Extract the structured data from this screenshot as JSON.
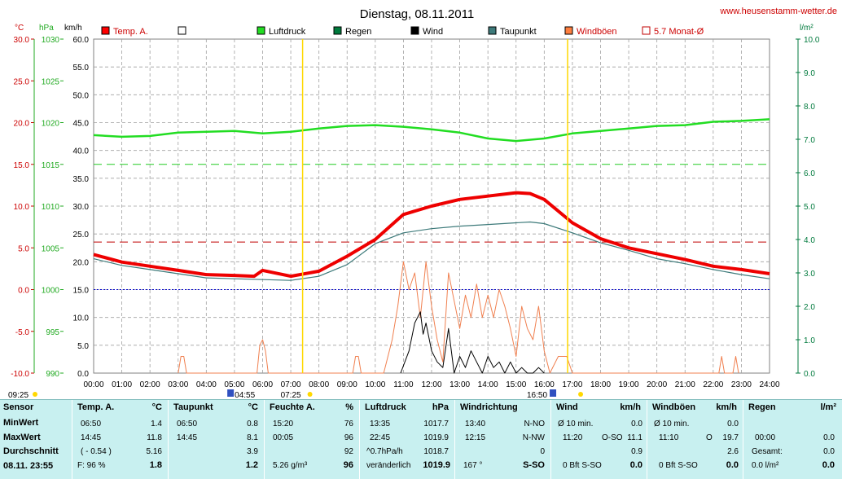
{
  "header": {
    "title": "Dienstag, 08.11.2011",
    "site": "www.heusenstamm-wetter.de"
  },
  "units": {
    "temp": "°C",
    "pressure": "hPa",
    "wind": "km/h",
    "rain": "l/m²"
  },
  "legend": [
    {
      "label": "Temp. A.",
      "color": "#ff0000"
    },
    {
      "label": "",
      "color": "#ffffff"
    },
    {
      "label": "Luftdruck",
      "color": "#22dd22"
    },
    {
      "label": "Regen",
      "color": "#007a3d"
    },
    {
      "label": "Wind",
      "color": "#000000"
    },
    {
      "label": "Taupunkt",
      "color": "#3d7a7a"
    },
    {
      "label": "Windböen",
      "color": "#ff7f3f"
    },
    {
      "label": "5.7 Monat-Ø",
      "color": "#c00000",
      "hollow": true
    }
  ],
  "colors": {
    "temp": "#ee0000",
    "pressure": "#22dd22",
    "rain": "#007a3d",
    "wind": "#000000",
    "dew": "#3d7a7a",
    "gust": "#f08050",
    "month_avg": "#c00000",
    "grid": "#a0a0a0",
    "rain_axis": "#007a3d"
  },
  "chart_data": {
    "type": "line",
    "x_ticks": [
      "00:00",
      "01:00",
      "02:00",
      "03:00",
      "04:00",
      "05:00",
      "06:00",
      "07:00",
      "08:00",
      "09:00",
      "10:00",
      "11:00",
      "12:00",
      "13:00",
      "14:00",
      "15:00",
      "16:00",
      "17:00",
      "18:00",
      "19:00",
      "20:00",
      "21:00",
      "22:00",
      "23:00",
      "24:00"
    ],
    "axes": {
      "temp": {
        "ticks": [
          "30.0",
          "25.0",
          "20.0",
          "15.0",
          "10.0",
          "5.0",
          "0.0",
          "-5.0",
          "-10.0"
        ],
        "min": -10,
        "max": 30
      },
      "pressure": {
        "ticks": [
          "1030",
          "1025",
          "1020",
          "1015",
          "1010",
          "1005",
          "1000",
          "995",
          "990"
        ],
        "min": 990,
        "max": 1030
      },
      "wind": {
        "ticks": [
          "60.0",
          "55.0",
          "50.0",
          "45.0",
          "40.0",
          "35.0",
          "30.0",
          "25.0",
          "20.0",
          "15.0",
          "10.0",
          "5.0",
          "0.0"
        ],
        "min": 0,
        "max": 60
      },
      "rain": {
        "ticks": [
          "10.0",
          "9.0",
          "8.0",
          "7.0",
          "6.0",
          "5.0",
          "4.0",
          "3.0",
          "2.0",
          "1.0",
          "0.0"
        ],
        "min": 0,
        "max": 10
      }
    },
    "month_avg_temp": 5.7,
    "reference_temp": 0,
    "reference_pressure_dash": 1015,
    "sun": {
      "sunrise_label": "07:25",
      "sunset_label": "16:50",
      "sunrise": 7.42,
      "sunset": 16.83
    },
    "moon": {
      "rise_label": "04:55",
      "set_label": "16:50",
      "rise": 4.92,
      "set": 16.83
    },
    "twilight_label": "09:25",
    "series": [
      {
        "name": "Temp. A.",
        "axis": "temp",
        "hours": [
          0,
          1,
          2,
          3,
          4,
          5,
          5.7,
          6,
          7,
          8,
          9,
          10,
          11,
          12,
          13,
          14,
          15,
          15.5,
          16,
          17,
          18,
          19,
          20,
          21,
          22,
          23,
          24
        ],
        "values": [
          4.2,
          3.3,
          2.8,
          2.3,
          1.8,
          1.7,
          1.6,
          2.3,
          1.6,
          2.2,
          4.0,
          6.0,
          9.0,
          10.0,
          10.8,
          11.2,
          11.6,
          11.5,
          10.8,
          8.0,
          6.1,
          5.0,
          4.3,
          3.6,
          2.8,
          2.4,
          1.9
        ]
      },
      {
        "name": "Taupunkt",
        "axis": "temp",
        "hours": [
          0,
          1,
          2,
          3,
          4,
          5,
          6,
          7,
          8,
          9,
          10,
          11,
          12,
          13,
          14,
          15,
          15.5,
          16,
          17,
          18,
          19,
          20,
          21,
          22,
          23,
          24
        ],
        "values": [
          3.7,
          2.9,
          2.4,
          1.9,
          1.4,
          1.3,
          1.2,
          1.1,
          1.6,
          3.0,
          5.5,
          6.8,
          7.3,
          7.6,
          7.8,
          8.0,
          8.1,
          7.9,
          6.8,
          5.6,
          4.7,
          3.7,
          3.1,
          2.4,
          1.8,
          1.3
        ]
      },
      {
        "name": "Luftdruck",
        "axis": "pressure",
        "hours": [
          0,
          1,
          2,
          3,
          4,
          5,
          6,
          7,
          8,
          9,
          10,
          11,
          12,
          13,
          14,
          15,
          16,
          17,
          18,
          19,
          20,
          21,
          22,
          23,
          24
        ],
        "values": [
          1018.5,
          1018.3,
          1018.4,
          1018.8,
          1018.9,
          1019.0,
          1018.7,
          1018.9,
          1019.3,
          1019.6,
          1019.7,
          1019.5,
          1019.2,
          1018.8,
          1018.1,
          1017.8,
          1018.1,
          1018.7,
          1019.0,
          1019.3,
          1019.6,
          1019.7,
          1020.1,
          1020.2,
          1020.4
        ]
      },
      {
        "name": "Wind",
        "axis": "wind",
        "hours": [
          10.9,
          11.2,
          11.4,
          11.6,
          11.7,
          11.8,
          12.0,
          12.2,
          12.4,
          12.6,
          12.8,
          13.0,
          13.2,
          13.4,
          13.6,
          13.8,
          14.0,
          14.2,
          14.4,
          14.6,
          14.8,
          15.0,
          15.2,
          15.4,
          15.6,
          15.8,
          16.0
        ],
        "values": [
          0,
          4,
          9,
          11,
          7,
          9,
          4,
          2,
          1,
          8,
          0,
          3,
          1,
          4,
          2,
          0,
          3,
          1,
          2,
          0,
          2,
          0,
          1,
          0,
          0,
          1,
          0
        ]
      },
      {
        "name": "Windböen",
        "axis": "wind",
        "hours": [
          3.0,
          3.1,
          3.2,
          3.3,
          5.8,
          5.9,
          6.0,
          6.1,
          6.2,
          9.2,
          9.3,
          9.4,
          9.5,
          10.3,
          10.6,
          10.8,
          11.0,
          11.2,
          11.4,
          11.6,
          11.8,
          12.0,
          12.2,
          12.4,
          12.6,
          12.8,
          13.0,
          13.2,
          13.4,
          13.6,
          13.8,
          14.0,
          14.2,
          14.4,
          14.6,
          14.8,
          15.0,
          15.2,
          15.4,
          15.6,
          15.8,
          16.0,
          16.2,
          16.5,
          16.8,
          17.0,
          22.2,
          22.3,
          22.4,
          22.7,
          22.8,
          22.9
        ],
        "values": [
          0,
          3,
          3,
          0,
          0,
          5,
          6,
          4,
          0,
          0,
          3,
          3,
          0,
          0,
          6,
          12,
          20,
          15,
          18,
          10,
          20,
          12,
          6,
          2,
          18,
          13,
          8,
          14,
          10,
          16,
          10,
          14,
          10,
          15,
          12,
          8,
          3,
          12,
          8,
          6,
          12,
          4,
          0,
          3,
          3,
          0,
          0,
          3,
          0,
          0,
          3,
          0
        ]
      }
    ]
  },
  "table": {
    "rowlabels": [
      "Sensor",
      "MinWert",
      "MaxWert",
      "Durchschnitt",
      "08.11.  23:55"
    ],
    "temp": {
      "title": "Temp. A.",
      "unit": "°C",
      "min_time": "06:50",
      "min": "1.4",
      "max_time": "14:45",
      "max": "11.8",
      "avg_note": "( - 0.54 )",
      "avg": "5.16",
      "cur_note": "F: 96 %",
      "cur": "1.8"
    },
    "dew": {
      "title": "Taupunkt",
      "unit": "°C",
      "min_time": "06:50",
      "min": "0.8",
      "max_time": "14:45",
      "max": "8.1",
      "avg": "3.9",
      "cur": "1.2"
    },
    "hum": {
      "title": "Feuchte A.",
      "unit": "%",
      "min_time": "15:20",
      "min": "76",
      "max_time": "00:05",
      "max": "96",
      "avg": "92",
      "cur_note": "5.26 g/m³",
      "cur": "96"
    },
    "press": {
      "title": "Luftdruck",
      "unit": "hPa",
      "min_time": "13:35",
      "min": "1017.7",
      "max_time": "22:45",
      "max": "1019.9",
      "avg_note": "^0.7hPa/h",
      "avg": "1018.7",
      "cur_note": "veränderlich",
      "cur": "1019.9"
    },
    "dir": {
      "title": "Windrichtung",
      "min_time": "13:40",
      "min": "N-NO",
      "max_time": "12:15",
      "max": "N-NW",
      "avg": "0",
      "cur_note": "167 °",
      "cur": "S-SO"
    },
    "wind": {
      "title": "Wind",
      "unit": "km/h",
      "min_time": "Ø 10 min.",
      "min": "0.0",
      "max_time": "11:20",
      "max_dir": "O-SO",
      "max": "11.1",
      "avg": "0.9",
      "cur_note": "0 Bft S-SO",
      "cur": "0.0"
    },
    "gust": {
      "title": "Windböen",
      "unit": "km/h",
      "min_time": "Ø 10 min.",
      "min": "0.0",
      "max_time": "11:10",
      "max_dir": "O",
      "max": "19.7",
      "avg": "2.6",
      "cur_note": "0 Bft S-SO",
      "cur": "0.0"
    },
    "rain": {
      "title": "Regen",
      "unit": "l/m²",
      "min_time": "00:00",
      "min": "0.0",
      "max_time": "Gesamt:",
      "max": "0.0",
      "cur_note": "0.0 l/m²",
      "cur": "0.0"
    }
  }
}
